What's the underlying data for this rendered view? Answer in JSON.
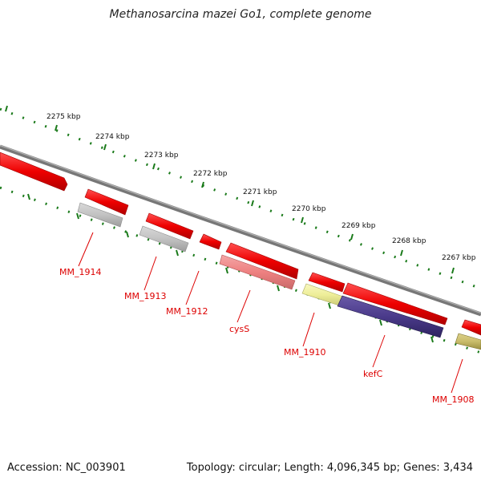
{
  "title": "Methanosarcina mazei Go1, complete genome",
  "footer": {
    "accession": "Accession: NC_003901",
    "topology": "Topology: circular; Length: 4,096,345 bp; Genes: 3,434"
  },
  "kbp_labels": [
    "2275 kbp",
    "2274 kbp",
    "2273 kbp",
    "2272 kbp",
    "2271 kbp",
    "2270 kbp",
    "2269 kbp",
    "2268 kbp",
    "2267 kbp"
  ],
  "gene_labels": [
    "MM_1914",
    "MM_1913",
    "MM_1912",
    "cysS",
    "MM_1910",
    "kefC",
    "MM_1908"
  ],
  "colors": {
    "backbone": "#808080",
    "tick": "#1a7a1a",
    "cds_red": "#ee0000",
    "gray": "#bdbdbd",
    "pink": "#ee8080",
    "yellow": "#eeee99",
    "purple": "#4a3a8a",
    "olive": "#c9bc6a",
    "label": "#dd0000"
  }
}
